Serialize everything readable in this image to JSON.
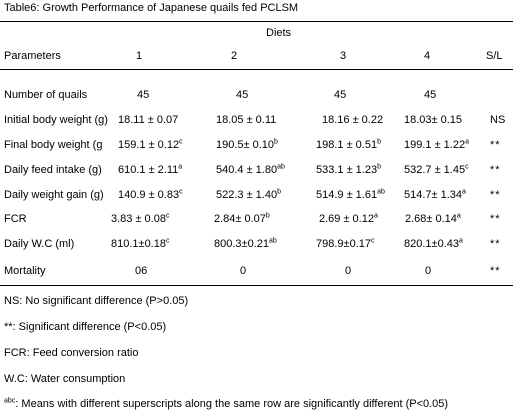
{
  "caption": "Table6: Growth Performance of Japanese quails fed PCLSM",
  "table": {
    "group_header": "Diets",
    "header": {
      "parameters": "Parameters",
      "diet1": "1",
      "diet2": "2",
      "diet3": "3",
      "diet4": "4",
      "sl": "S/L"
    },
    "rows": [
      {
        "param": "Number of quails",
        "d1": {
          "v": "45",
          "s": ""
        },
        "d2": {
          "v": "45",
          "s": ""
        },
        "d3": {
          "v": "45",
          "s": ""
        },
        "d4": {
          "v": "45",
          "s": ""
        },
        "sl": ""
      },
      {
        "param": "Initial body weight (g)",
        "d1": {
          "v": "18.11 ± 0.07",
          "s": ""
        },
        "d2": {
          "v": "18.05 ± 0.11",
          "s": ""
        },
        "d3": {
          "v": "18.16 ± 0.22",
          "s": ""
        },
        "d4": {
          "v": "18.03± 0.15",
          "s": ""
        },
        "sl": "NS"
      },
      {
        "param": "Final body weight (g",
        "d1": {
          "v": "159.1 ± 0.12",
          "s": "c"
        },
        "d2": {
          "v": "190.5± 0.10",
          "s": "b"
        },
        "d3": {
          "v": "198.1 ± 0.51",
          "s": "b"
        },
        "d4": {
          "v": "199.1 ± 1.22",
          "s": "a"
        },
        "sl": "**"
      },
      {
        "param": "Daily feed intake (g)",
        "d1": {
          "v": "610.1 ± 2.11",
          "s": "a"
        },
        "d2": {
          "v": "540.4 ± 1.80",
          "s": "ab"
        },
        "d3": {
          "v": "533.1 ± 1.23",
          "s": "b"
        },
        "d4": {
          "v": "532.7 ± 1.45",
          "s": "c"
        },
        "sl": "**"
      },
      {
        "param": "Daily weight gain (g)",
        "d1": {
          "v": "140.9 ± 0.83",
          "s": "c"
        },
        "d2": {
          "v": "522.3 ± 1.40",
          "s": "b"
        },
        "d3": {
          "v": "514.9 ± 1.61",
          "s": "ab"
        },
        "d4": {
          "v": "514.7± 1.34",
          "s": "a"
        },
        "sl": "**"
      },
      {
        "param": "FCR",
        "d1": {
          "v": "3.83 ± 0.08",
          "s": "c"
        },
        "d2": {
          "v": "2.84± 0.07",
          "s": "b"
        },
        "d3": {
          "v": "2.69 ± 0.12",
          "s": "a"
        },
        "d4": {
          "v": "2.68± 0.14",
          "s": "a"
        },
        "sl": "**"
      },
      {
        "param": "Daily W.C (ml)",
        "d1": {
          "v": "810.1±0.18",
          "s": "c"
        },
        "d2": {
          "v": "800.3±0.21",
          "s": "ab"
        },
        "d3": {
          "v": "798.9±0.17",
          "s": "c"
        },
        "d4": {
          "v": "820.1±0.43",
          "s": "a"
        },
        "sl": "**"
      },
      {
        "param": "Mortality",
        "d1": {
          "v": "06",
          "s": ""
        },
        "d2": {
          "v": "0",
          "s": ""
        },
        "d3": {
          "v": "0",
          "s": ""
        },
        "d4": {
          "v": "0",
          "s": ""
        },
        "sl": "**"
      }
    ]
  },
  "notes": {
    "ns": "NS: No significant difference (P>0.05)",
    "sig": "**: Significant difference (P<0.05)",
    "fcr": "FCR: Feed conversion ratio",
    "wc": "W.C: Water consumption",
    "abc_sup": "abc",
    "abc_text": ": Means with different superscripts along the same row are significantly different (P<0.05)"
  }
}
